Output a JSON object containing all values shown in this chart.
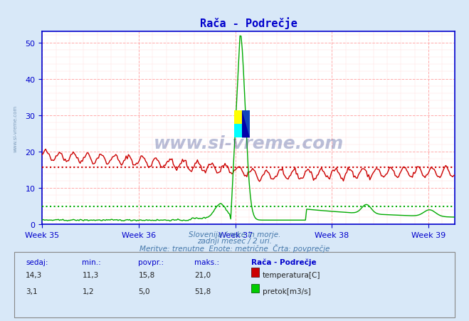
{
  "title": "Rača - Podrečje",
  "title_color": "#0000cc",
  "bg_color": "#d8e8f8",
  "plot_bg_color": "#ffffff",
  "grid_major_color": "#ffaaaa",
  "grid_minor_color": "#ffdddd",
  "axis_color": "#0000cc",
  "tick_color": "#0000cc",
  "xlabel_weeks": [
    "Week 35",
    "Week 36",
    "Week 37",
    "Week 38",
    "Week 39"
  ],
  "ylim": [
    0,
    53
  ],
  "yticks": [
    0,
    10,
    20,
    30,
    40,
    50
  ],
  "num_points": 360,
  "week_positions": [
    0,
    84,
    168,
    252,
    336
  ],
  "temp_color": "#cc0000",
  "flow_color": "#00aa00",
  "temp_avg": 15.8,
  "flow_avg": 5.0,
  "temp_min": 11.3,
  "temp_max": 21.0,
  "flow_min": 1.2,
  "flow_max": 51.8,
  "temp_current": 14.3,
  "flow_current": 3.1,
  "watermark": "www.si-vreme.com",
  "subtitle1": "Slovenija / reke in morje.",
  "subtitle2": "zadnji mesec / 2 uri.",
  "subtitle3": "Meritve: trenutne  Enote: metrične  Črta: povprečje",
  "footer_col_labels": [
    "sedaj:",
    "min.:",
    "povpr.:",
    "maks.:",
    "Rača - Podrečje"
  ],
  "legend_temp": "temperatura[C]",
  "legend_flow": "pretok[m3/s]",
  "left_label": "www.si-vreme.com",
  "logo_yellow": "#ffff00",
  "logo_cyan": "#00ffff",
  "logo_blue": "#1144bb",
  "logo_darkblue": "#0000aa"
}
